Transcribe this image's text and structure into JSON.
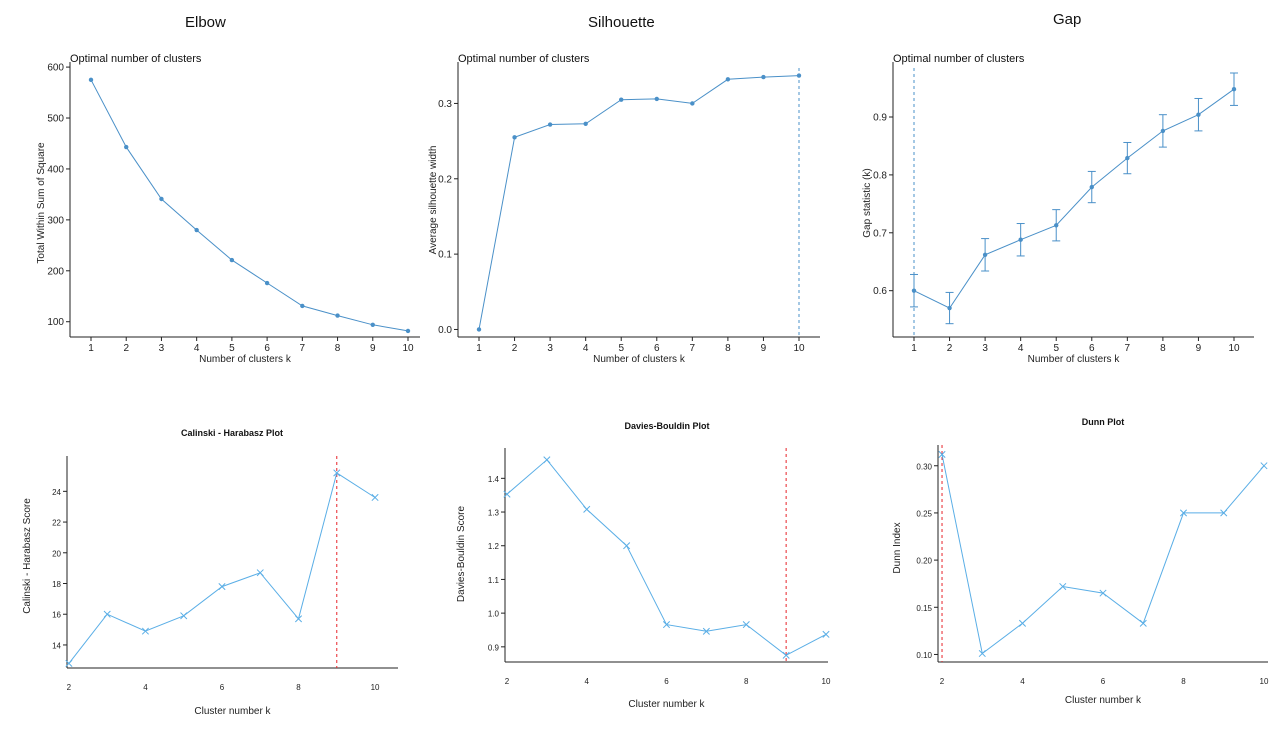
{
  "headings": {
    "elbow": "Elbow",
    "silhouette": "Silhouette",
    "gap": "Gap"
  },
  "colors": {
    "line": "#4a90c8",
    "line_light": "#5aaee6",
    "ref_blue": "#4a90c8",
    "ref_red": "#e8242a",
    "axis": "#222222"
  },
  "chart_data": [
    {
      "id": "elbow",
      "type": "line",
      "title": "Optimal number of clusters",
      "xlabel": "Number of clusters k",
      "ylabel": "Total Within Sum of Square",
      "x": [
        1,
        2,
        3,
        4,
        5,
        6,
        7,
        8,
        9,
        10
      ],
      "values": [
        575,
        443,
        341,
        280,
        221,
        176,
        131,
        112,
        94,
        82
      ],
      "xticks": [
        "1",
        "2",
        "3",
        "4",
        "5",
        "6",
        "7",
        "8",
        "9",
        "10"
      ],
      "yticks": [
        100,
        200,
        300,
        400,
        500,
        600
      ],
      "ylim": [
        70,
        610
      ]
    },
    {
      "id": "silhouette",
      "type": "line",
      "title": "Optimal number of clusters",
      "xlabel": "Number of clusters k",
      "ylabel": "Average silhouette width",
      "x": [
        1,
        2,
        3,
        4,
        5,
        6,
        7,
        8,
        9,
        10
      ],
      "values": [
        0.0,
        0.255,
        0.272,
        0.273,
        0.305,
        0.306,
        0.3,
        0.332,
        0.335,
        0.337
      ],
      "xticks": [
        "1",
        "2",
        "3",
        "4",
        "5",
        "6",
        "7",
        "8",
        "9",
        "10"
      ],
      "yticks": [
        "0.0",
        "0.1",
        "0.2",
        "0.3"
      ],
      "ylim": [
        -0.01,
        0.355
      ],
      "optimal_k": 10
    },
    {
      "id": "gap",
      "type": "line",
      "title": "Optimal number of clusters",
      "xlabel": "Number of clusters k",
      "ylabel": "Gap statistic (k)",
      "x": [
        1,
        2,
        3,
        4,
        5,
        6,
        7,
        8,
        9,
        10
      ],
      "values": [
        0.6,
        0.57,
        0.662,
        0.688,
        0.713,
        0.779,
        0.829,
        0.876,
        0.904,
        0.948
      ],
      "errors": [
        0.028,
        0.027,
        0.028,
        0.028,
        0.027,
        0.027,
        0.027,
        0.028,
        0.028,
        0.028
      ],
      "xticks": [
        "1",
        "2",
        "3",
        "4",
        "5",
        "6",
        "7",
        "8",
        "9",
        "10"
      ],
      "yticks": [
        "0.6",
        "0.7",
        "0.8",
        "0.9"
      ],
      "ylim": [
        0.52,
        0.995
      ],
      "optimal_k": 1
    },
    {
      "id": "calinski",
      "type": "line",
      "title": "Calinski - Harabasz Plot",
      "xlabel": "Cluster number k",
      "ylabel": "Calinski - Harabasz Score",
      "x": [
        2,
        3,
        4,
        5,
        6,
        7,
        8,
        9,
        10
      ],
      "values": [
        12.8,
        16.0,
        14.9,
        15.9,
        17.8,
        18.7,
        15.7,
        25.2,
        23.6
      ],
      "xticks": [
        2,
        4,
        6,
        8,
        10
      ],
      "xlim": [
        1.95,
        10.6
      ],
      "yticks": [
        14,
        16,
        18,
        20,
        22,
        24
      ],
      "ylim": [
        12.5,
        26.3
      ],
      "optimal_k": 9
    },
    {
      "id": "davies",
      "type": "line",
      "title": "Davies-Bouldin Plot",
      "xlabel": "Cluster number k",
      "ylabel": "Davies-Bouldin Score",
      "x": [
        2,
        3,
        4,
        5,
        6,
        7,
        8,
        9,
        10
      ],
      "values": [
        1.353,
        1.455,
        1.308,
        1.2,
        0.966,
        0.946,
        0.966,
        0.875,
        0.937
      ],
      "xticks": [
        2,
        4,
        6,
        8,
        10
      ],
      "xlim": [
        1.95,
        10.05
      ],
      "yticks": [
        "0.9",
        "1.0",
        "1.1",
        "1.2",
        "1.3",
        "1.4"
      ],
      "ylim": [
        0.855,
        1.49
      ],
      "optimal_k": 9
    },
    {
      "id": "dunn",
      "type": "line",
      "title": "Dunn Plot",
      "xlabel": "Cluster number k",
      "ylabel": "Dunn Index",
      "x": [
        2,
        3,
        4,
        5,
        6,
        7,
        8,
        9,
        10
      ],
      "values": [
        0.312,
        0.101,
        0.133,
        0.172,
        0.165,
        0.133,
        0.25,
        0.25,
        0.3
      ],
      "xticks": [
        2,
        4,
        6,
        8,
        10
      ],
      "xlim": [
        1.9,
        10.1
      ],
      "yticks": [
        "0.10",
        "0.15",
        "0.20",
        "0.25",
        "0.30"
      ],
      "ylim": [
        0.092,
        0.322
      ],
      "optimal_k": 2
    }
  ]
}
